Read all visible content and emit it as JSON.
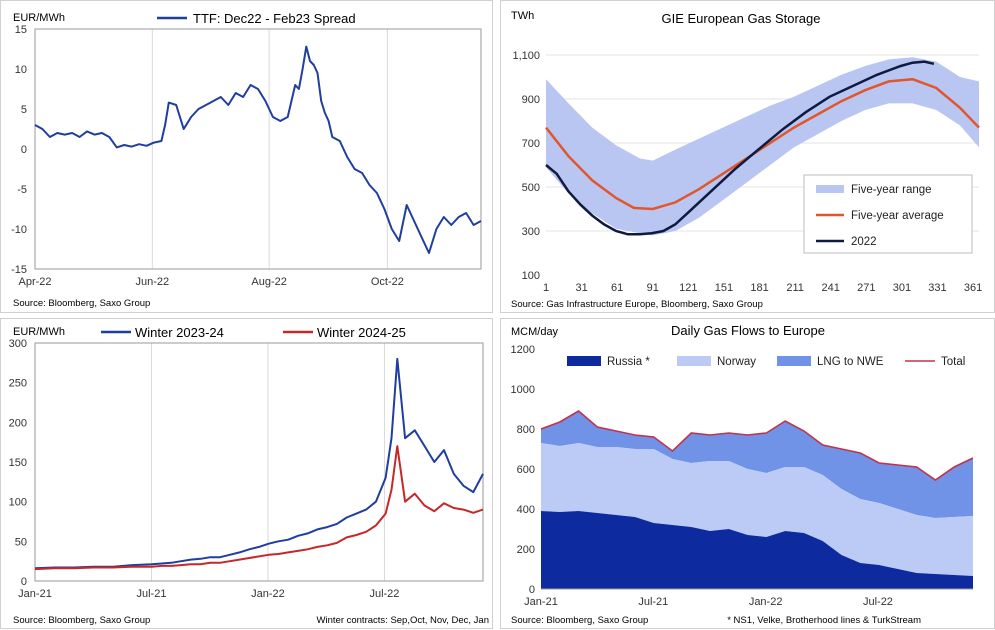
{
  "chart_data": [
    {
      "type": "line",
      "title": "TTF: Dec22 - Feb23 Spread",
      "ylabel": "EUR/MWh",
      "ylim": [
        -15,
        15
      ],
      "yticks": [
        "15",
        "10",
        "5",
        "0",
        "-5",
        "-10",
        "-15"
      ],
      "xtick_labels": [
        "Apr-22",
        "Jun-22",
        "Aug-22",
        "Oct-22"
      ],
      "source": "Source: Bloomberg, Saxo Group",
      "color": "#1f3e9e",
      "series": [
        {
          "name": "TTF: Dec22 - Feb23 Spread",
          "x": [
            0,
            4,
            8,
            12,
            16,
            20,
            24,
            28,
            32,
            36,
            40,
            44,
            48,
            52,
            56,
            60,
            64,
            68,
            70,
            72,
            76,
            80,
            84,
            88,
            92,
            96,
            100,
            104,
            108,
            112,
            116,
            120,
            124,
            128,
            132,
            136,
            140,
            142,
            144,
            146,
            148,
            150,
            152,
            154,
            156,
            158,
            160,
            164,
            168,
            172,
            176,
            180,
            184,
            188,
            192,
            196,
            200,
            204,
            208,
            212,
            216,
            220,
            224,
            228,
            232,
            236,
            240
          ],
          "values": [
            3.0,
            2.5,
            1.5,
            2.0,
            1.8,
            2.0,
            1.5,
            2.2,
            1.8,
            2.0,
            1.5,
            0.2,
            0.5,
            0.3,
            0.6,
            0.4,
            0.8,
            1.0,
            3.0,
            5.8,
            5.5,
            2.5,
            4.0,
            5.0,
            5.5,
            6.0,
            6.5,
            5.5,
            7.0,
            6.5,
            8.0,
            7.5,
            6.0,
            4.0,
            3.5,
            4.0,
            8.0,
            7.5,
            10.0,
            12.8,
            11.0,
            10.5,
            9.5,
            6.0,
            4.5,
            3.5,
            1.5,
            1.0,
            -1.0,
            -2.5,
            -3.0,
            -4.5,
            -5.5,
            -7.5,
            -10.0,
            -11.5,
            -7.0,
            -9.0,
            -11.0,
            -13.0,
            -10.0,
            -8.5,
            -9.5,
            -8.5,
            -8.0,
            -9.5,
            -9.0
          ]
        }
      ]
    },
    {
      "type": "line",
      "title": "GIE European Gas Storage",
      "ylabel": "TWh",
      "ylim": [
        100,
        1100
      ],
      "xlim": [
        1,
        366
      ],
      "yticks": [
        "1,100",
        "900",
        "700",
        "500",
        "300",
        "100"
      ],
      "xticks": [
        "1",
        "31",
        "61",
        "91",
        "121",
        "151",
        "181",
        "211",
        "241",
        "271",
        "301",
        "331",
        "361"
      ],
      "source": "Source: Gas Infrastructure Europe, Bloomberg, Saxo Group",
      "legend": {
        "position": "bottom-right",
        "entries": [
          "Five-year range",
          "Five-year average",
          "2022"
        ]
      },
      "colors": {
        "range": "#b9c6f2",
        "average": "#e1572b",
        "current": "#0f1a40"
      },
      "series": [
        {
          "name": "Five-year range (upper)",
          "x": [
            1,
            20,
            40,
            60,
            80,
            91,
            110,
            130,
            150,
            170,
            190,
            210,
            230,
            250,
            270,
            290,
            310,
            330,
            350,
            366
          ],
          "values": [
            990,
            880,
            770,
            690,
            630,
            620,
            670,
            720,
            770,
            820,
            870,
            910,
            960,
            1010,
            1050,
            1080,
            1090,
            1070,
            1000,
            980
          ]
        },
        {
          "name": "Five-year range (lower)",
          "x": [
            1,
            20,
            40,
            60,
            80,
            91,
            110,
            130,
            150,
            170,
            190,
            210,
            230,
            250,
            270,
            290,
            310,
            330,
            350,
            366
          ],
          "values": [
            590,
            470,
            380,
            310,
            290,
            280,
            300,
            360,
            440,
            520,
            600,
            680,
            740,
            800,
            850,
            880,
            880,
            850,
            780,
            680
          ]
        },
        {
          "name": "Five-year average",
          "x": [
            1,
            20,
            40,
            60,
            75,
            91,
            110,
            130,
            150,
            170,
            190,
            210,
            230,
            250,
            270,
            290,
            310,
            330,
            350,
            366
          ],
          "values": [
            770,
            640,
            530,
            450,
            405,
            400,
            430,
            490,
            560,
            630,
            700,
            770,
            830,
            890,
            940,
            980,
            990,
            950,
            860,
            770
          ]
        },
        {
          "name": "2022",
          "x": [
            1,
            10,
            20,
            30,
            40,
            50,
            60,
            70,
            80,
            90,
            100,
            110,
            120,
            140,
            160,
            180,
            200,
            220,
            240,
            260,
            280,
            300,
            310,
            320,
            328
          ],
          "values": [
            600,
            560,
            480,
            420,
            370,
            330,
            300,
            285,
            285,
            290,
            300,
            330,
            380,
            480,
            580,
            670,
            760,
            840,
            910,
            960,
            1010,
            1050,
            1065,
            1070,
            1060
          ]
        }
      ]
    },
    {
      "type": "line",
      "ylabel": "EUR/MWh",
      "ylim": [
        0,
        300
      ],
      "yticks": [
        "300",
        "250",
        "200",
        "150",
        "100",
        "50",
        "0"
      ],
      "xtick_labels": [
        "Jan-21",
        "Jul-21",
        "Jan-22",
        "Jul-22"
      ],
      "source": "Source: Bloomberg, Saxo Group",
      "footnote": "Winter contracts: Sep,Oct, Nov, Dec, Jan",
      "legend": {
        "position": "top",
        "entries": [
          "Winter 2023-24",
          "Winter 2024-25"
        ]
      },
      "colors": {
        "winter2324": "#1f3e9e",
        "winter2425": "#c62828"
      },
      "series": [
        {
          "name": "Winter 2023-24",
          "x": [
            0,
            1,
            2,
            3,
            4,
            5,
            6,
            6.5,
            7,
            7.5,
            8,
            8.5,
            9,
            9.5,
            10,
            10.5,
            11,
            11.5,
            12,
            12.5,
            13,
            13.5,
            14,
            14.5,
            15,
            15.5,
            16,
            16.5,
            17,
            17.5,
            18,
            18.3,
            18.6,
            19,
            19.5,
            20,
            20.5,
            21,
            21.5,
            22,
            22.5,
            23
          ],
          "values": [
            16,
            17,
            17,
            18,
            18,
            20,
            21,
            22,
            23,
            25,
            27,
            28,
            30,
            30,
            33,
            36,
            40,
            43,
            47,
            50,
            52,
            57,
            60,
            65,
            68,
            72,
            80,
            85,
            90,
            100,
            130,
            180,
            280,
            180,
            190,
            170,
            150,
            165,
            135,
            120,
            112,
            135
          ]
        },
        {
          "name": "Winter 2024-25",
          "x": [
            0,
            1,
            2,
            3,
            4,
            5,
            6,
            6.5,
            7,
            7.5,
            8,
            8.5,
            9,
            9.5,
            10,
            10.5,
            11,
            11.5,
            12,
            12.5,
            13,
            13.5,
            14,
            14.5,
            15,
            15.5,
            16,
            16.5,
            17,
            17.5,
            18,
            18.3,
            18.6,
            19,
            19.5,
            20,
            20.5,
            21,
            21.5,
            22,
            22.5,
            23
          ],
          "values": [
            15,
            16,
            16,
            17,
            17,
            18,
            18,
            19,
            19,
            20,
            21,
            21,
            23,
            23,
            25,
            27,
            29,
            31,
            33,
            34,
            36,
            38,
            40,
            43,
            45,
            48,
            55,
            58,
            62,
            70,
            85,
            115,
            170,
            100,
            110,
            95,
            88,
            98,
            92,
            90,
            86,
            90
          ]
        }
      ]
    },
    {
      "type": "area",
      "title": "Daily Gas Flows to Europe",
      "ylabel": "MCM/day",
      "ylim": [
        0,
        1200
      ],
      "yticks": [
        "1200",
        "1000",
        "800",
        "600",
        "400",
        "200",
        "0"
      ],
      "xtick_labels": [
        "Jan-21",
        "Jul-21",
        "Jan-22",
        "Jul-22"
      ],
      "source": "Source: Bloomberg, Saxo Group",
      "footnote": "* NS1, Velke, Brotherhood lines & TurkStream",
      "legend": {
        "position": "top",
        "entries": [
          "Russia *",
          "Norway",
          "LNG to NWE",
          "Total"
        ]
      },
      "colors": {
        "russia": "#0d2a9e",
        "norway": "#bccbf6",
        "lng": "#7093e8",
        "total": "#c0334b"
      },
      "x": [
        0,
        1,
        2,
        3,
        4,
        5,
        6,
        7,
        8,
        9,
        10,
        11,
        12,
        13,
        14,
        15,
        16,
        17,
        18,
        19,
        20,
        21,
        22,
        23
      ],
      "series": [
        {
          "name": "Russia *",
          "values": [
            390,
            385,
            390,
            380,
            370,
            360,
            330,
            320,
            310,
            290,
            300,
            270,
            260,
            290,
            280,
            240,
            170,
            130,
            120,
            100,
            80,
            75,
            70,
            65
          ]
        },
        {
          "name": "Norway",
          "values": [
            340,
            330,
            340,
            330,
            340,
            340,
            370,
            330,
            320,
            350,
            340,
            330,
            320,
            320,
            330,
            330,
            330,
            320,
            310,
            300,
            290,
            280,
            290,
            300
          ]
        },
        {
          "name": "LNG to NWE",
          "values": [
            70,
            120,
            160,
            100,
            80,
            70,
            60,
            40,
            150,
            130,
            140,
            170,
            200,
            230,
            180,
            150,
            200,
            230,
            200,
            220,
            240,
            190,
            250,
            290
          ]
        },
        {
          "name": "Total",
          "values": [
            800,
            835,
            890,
            810,
            790,
            770,
            760,
            690,
            780,
            770,
            780,
            770,
            780,
            840,
            790,
            720,
            700,
            680,
            630,
            620,
            610,
            545,
            610,
            655
          ]
        }
      ]
    }
  ]
}
